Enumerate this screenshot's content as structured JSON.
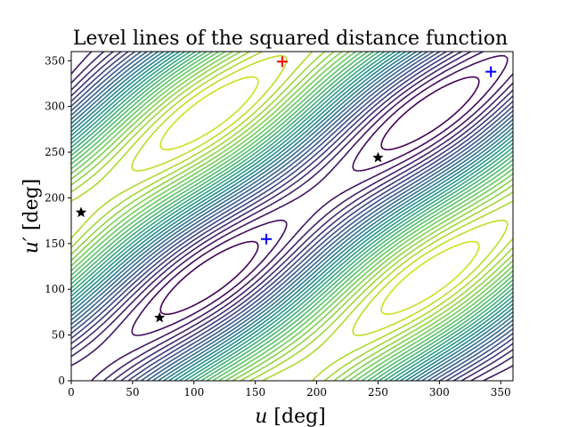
{
  "chart_data": {
    "type": "contour",
    "title": "Level lines of the squared distance function",
    "xlabel": "u [deg]",
    "ylabel": "u′ [deg]",
    "xlim": [
      0,
      360
    ],
    "ylim": [
      0,
      360
    ],
    "xticks": [
      "0",
      "50",
      "100",
      "150",
      "200",
      "250",
      "300",
      "350"
    ],
    "yticks": [
      "0",
      "50",
      "100",
      "150",
      "200",
      "250",
      "300",
      "350"
    ],
    "grid": false,
    "legend": "none",
    "colormap": [
      "#440154",
      "#3b528b",
      "#21918c",
      "#5ec962",
      "#cde11d"
    ],
    "contour_levels": 30,
    "markers": {
      "black_stars": [
        [
          8,
          184
        ],
        [
          72,
          69
        ],
        [
          250,
          244
        ]
      ],
      "blue_plus": [
        [
          159,
          155
        ],
        [
          342,
          338
        ]
      ],
      "red_plus": [
        [
          172,
          349
        ]
      ]
    },
    "marker_colors": {
      "black_stars": "#000000",
      "blue_plus": "#0000ff",
      "red_plus": "#ff0000"
    }
  }
}
